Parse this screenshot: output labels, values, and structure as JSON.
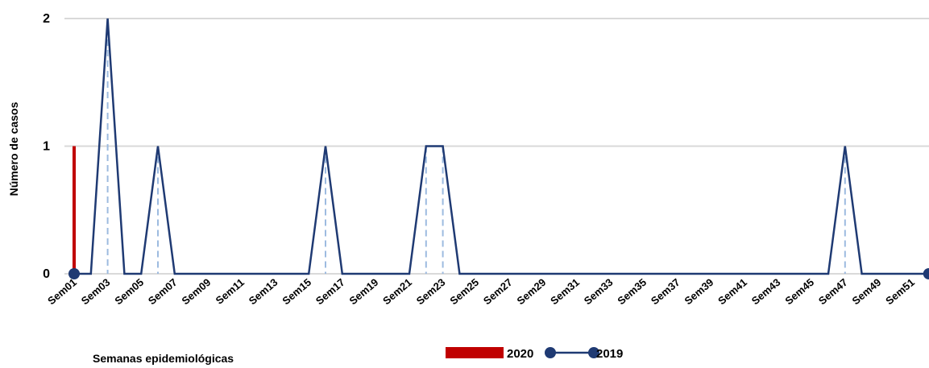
{
  "chart_data": {
    "type": "combo",
    "y_label": "Número de casos",
    "x_label": "Semanas epidemiológicas",
    "categories": [
      "Sem01",
      null,
      "Sem03",
      null,
      "Sem05",
      null,
      "Sem07",
      null,
      "Sem09",
      null,
      "Sem11",
      null,
      "Sem13",
      null,
      "Sem15",
      null,
      "Sem17",
      null,
      "Sem19",
      null,
      "Sem21",
      null,
      "Sem23",
      null,
      "Sem25",
      null,
      "Sem27",
      null,
      "Sem29",
      null,
      "Sem31",
      null,
      "Sem33",
      null,
      "Sem35",
      null,
      "Sem37",
      null,
      "Sem39",
      null,
      "Sem41",
      null,
      "Sem43",
      null,
      "Sem45",
      null,
      "Sem47",
      null,
      "Sem49",
      null,
      "Sem51",
      null
    ],
    "series": [
      {
        "name": "2020",
        "type": "bar",
        "color": "#c00000",
        "values": [
          1,
          null,
          null,
          null,
          null,
          null,
          null,
          null,
          null,
          null,
          null,
          null,
          null,
          null,
          null,
          null,
          null,
          null,
          null,
          null,
          null,
          null,
          null,
          null,
          null,
          null,
          null,
          null,
          null,
          null,
          null,
          null,
          null,
          null,
          null,
          null,
          null,
          null,
          null,
          null,
          null,
          null,
          null,
          null,
          null,
          null,
          null,
          null,
          null,
          null,
          null,
          null
        ]
      },
      {
        "name": "2019",
        "type": "line",
        "color": "#1f3a73",
        "drop_line_color": "#9dbbe0",
        "values": [
          0,
          0,
          2,
          0,
          0,
          1,
          0,
          0,
          0,
          0,
          0,
          0,
          0,
          0,
          0,
          1,
          0,
          0,
          0,
          0,
          0,
          1,
          1,
          0,
          0,
          0,
          0,
          0,
          0,
          0,
          0,
          0,
          0,
          0,
          0,
          0,
          0,
          0,
          0,
          0,
          0,
          0,
          0,
          0,
          0,
          0,
          1,
          0,
          0,
          0,
          0,
          0
        ]
      }
    ],
    "ylim": [
      0,
      2
    ],
    "yticks": [
      0,
      1,
      2
    ],
    "grid": true,
    "legend": "bottom"
  }
}
